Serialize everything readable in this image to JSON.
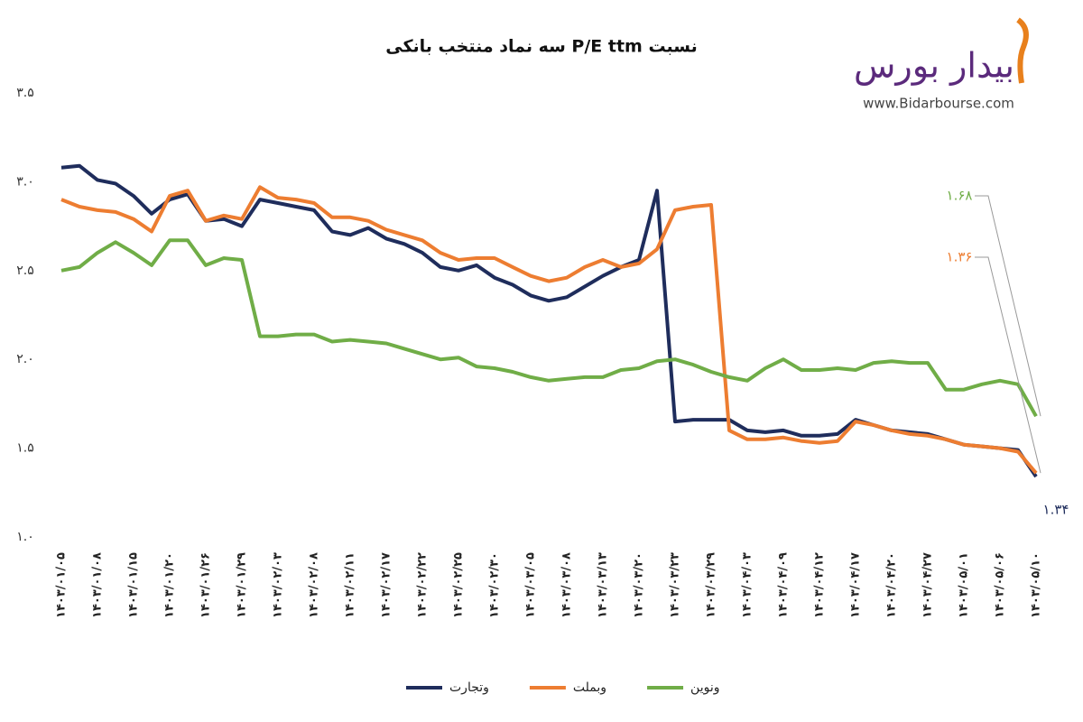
{
  "logo": {
    "name": "بیدار بورس",
    "url": "www.Bidarbourse.com"
  },
  "chart_data": {
    "type": "line",
    "title": "نسبت P/E ttm سه نماد منتخب بانکی",
    "categories": [
      "۱۴۰۳/۰۱/۰۵",
      null,
      "۱۴۰۳/۰۱/۰۸",
      null,
      "۱۴۰۳/۰۱/۱۵",
      null,
      "۱۴۰۳/۰۱/۲۰",
      null,
      "۱۴۰۳/۰۱/۲۶",
      null,
      "۱۴۰۳/۰۱/۲۹",
      null,
      "۱۴۰۳/۰۲/۰۳",
      null,
      "۱۴۰۳/۰۲/۰۸",
      null,
      "۱۴۰۳/۰۲/۱۱",
      null,
      "۱۴۰۳/۰۲/۱۷",
      null,
      "۱۴۰۳/۰۲/۲۲",
      null,
      "۱۴۰۳/۰۲/۲۵",
      null,
      "۱۴۰۳/۰۲/۳۰",
      null,
      "۱۴۰۳/۰۳/۰۵",
      null,
      "۱۴۰۳/۰۳/۰۸",
      null,
      "۱۴۰۳/۰۳/۱۳",
      null,
      "۱۴۰۳/۰۳/۲۰",
      null,
      "۱۴۰۳/۰۳/۲۳",
      null,
      "۱۴۰۳/۰۳/۲۹",
      null,
      "۱۴۰۳/۰۴/۰۳",
      null,
      "۱۴۰۳/۰۴/۰۹",
      null,
      "۱۴۰۳/۰۴/۱۲",
      null,
      "۱۴۰۳/۰۴/۱۷",
      null,
      "۱۴۰۳/۰۴/۲۰",
      null,
      "۱۴۰۳/۰۴/۲۷",
      null,
      "۱۴۰۳/۰۵/۰۱",
      null,
      "۱۴۰۳/۰۵/۰۶",
      null,
      "۱۴۰۳/۰۵/۱۰"
    ],
    "series": [
      {
        "name": "وتجارت",
        "color": "#1f2d5c",
        "values": [
          3.08,
          3.09,
          3.01,
          2.99,
          2.92,
          2.82,
          2.9,
          2.93,
          2.78,
          2.79,
          2.75,
          2.9,
          2.88,
          2.86,
          2.84,
          2.72,
          2.7,
          2.74,
          2.68,
          2.65,
          2.6,
          2.52,
          2.5,
          2.53,
          2.46,
          2.42,
          2.36,
          2.33,
          2.35,
          2.41,
          2.47,
          2.52,
          2.56,
          2.95,
          1.65,
          1.66,
          1.66,
          1.66,
          1.6,
          1.59,
          1.6,
          1.57,
          1.57,
          1.58,
          1.66,
          1.63,
          1.6,
          1.59,
          1.58,
          1.55,
          1.52,
          1.51,
          1.5,
          1.49,
          1.34
        ]
      },
      {
        "name": "وبملت",
        "color": "#ed7d31",
        "values": [
          2.9,
          2.86,
          2.84,
          2.83,
          2.79,
          2.72,
          2.92,
          2.95,
          2.78,
          2.81,
          2.79,
          2.97,
          2.91,
          2.9,
          2.88,
          2.8,
          2.8,
          2.78,
          2.73,
          2.7,
          2.67,
          2.6,
          2.56,
          2.57,
          2.57,
          2.52,
          2.47,
          2.44,
          2.46,
          2.52,
          2.56,
          2.52,
          2.54,
          2.62,
          2.84,
          2.86,
          2.87,
          1.6,
          1.55,
          1.55,
          1.56,
          1.54,
          1.53,
          1.54,
          1.65,
          1.63,
          1.6,
          1.58,
          1.57,
          1.55,
          1.52,
          1.51,
          1.5,
          1.48,
          1.36
        ]
      },
      {
        "name": "ونوین",
        "color": "#70ad47",
        "values": [
          2.5,
          2.52,
          2.6,
          2.66,
          2.6,
          2.53,
          2.67,
          2.67,
          2.53,
          2.57,
          2.56,
          2.13,
          2.13,
          2.14,
          2.14,
          2.1,
          2.11,
          2.1,
          2.09,
          2.06,
          2.03,
          2.0,
          2.01,
          1.96,
          1.95,
          1.93,
          1.9,
          1.88,
          1.89,
          1.9,
          1.9,
          1.94,
          1.95,
          1.99,
          2.0,
          1.97,
          1.93,
          1.9,
          1.88,
          1.95,
          2.0,
          1.94,
          1.94,
          1.95,
          1.94,
          1.98,
          1.99,
          1.98,
          1.98,
          1.83,
          1.83,
          1.86,
          1.88,
          1.86,
          1.68
        ]
      }
    ],
    "ylim": [
      1.0,
      3.5
    ],
    "yticks": [
      {
        "value": 1.0,
        "label": "۱.۰"
      },
      {
        "value": 1.5,
        "label": "۱.۵"
      },
      {
        "value": 2.0,
        "label": "۲.۰"
      },
      {
        "value": 2.5,
        "label": "۲.۵"
      },
      {
        "value": 3.0,
        "label": "۳.۰"
      },
      {
        "value": 3.5,
        "label": "۳.۵"
      }
    ],
    "grid": false,
    "annotations": [
      "۱.۶۸",
      "۱.۳۶",
      "۱.۳۴"
    ]
  }
}
